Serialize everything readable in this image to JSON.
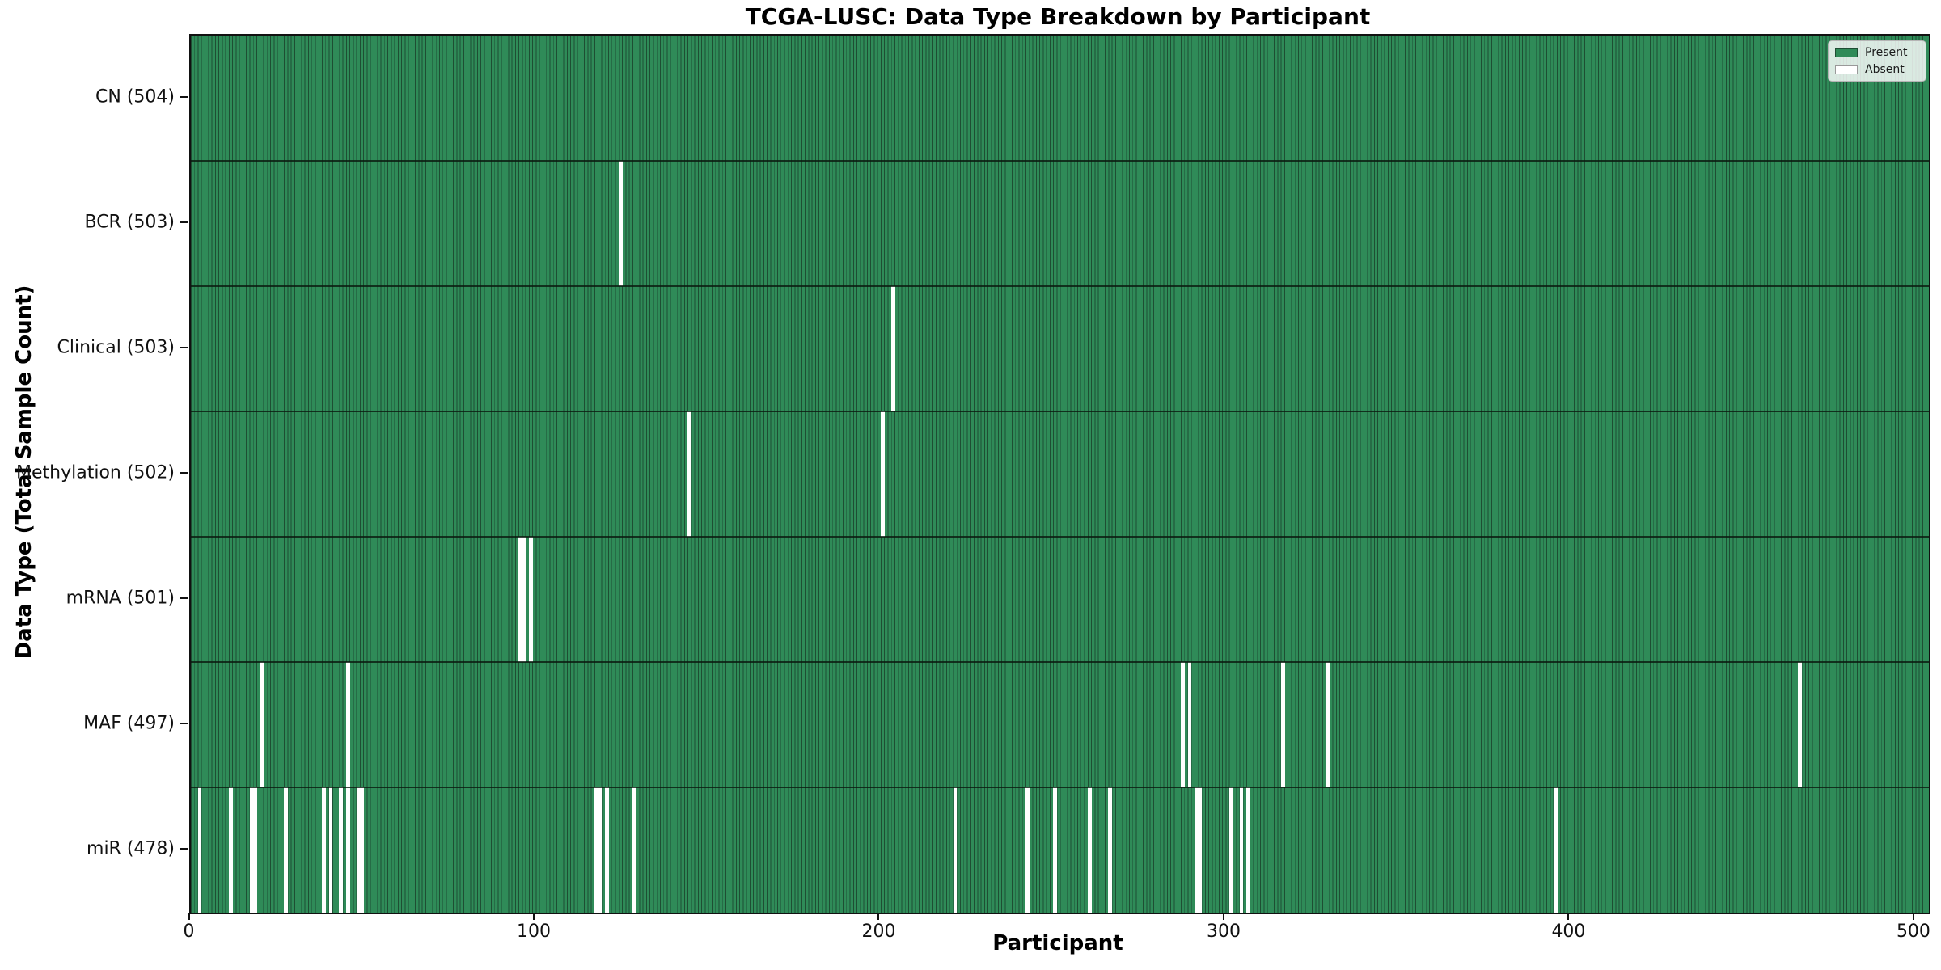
{
  "chart_data": {
    "type": "heatmap",
    "title": "TCGA-LUSC: Data Type Breakdown by Participant",
    "xlabel": "Participant",
    "ylabel": "Data Type (Total Sample Count)",
    "n_participants": 504,
    "xlim": [
      0,
      504
    ],
    "x_ticks": [
      0,
      100,
      200,
      300,
      400,
      500
    ],
    "grid": false,
    "legend": {
      "position": "upper right",
      "entries": [
        {
          "label": "Present",
          "color": "#2f8b58",
          "edge": "#1e4e33"
        },
        {
          "label": "Absent",
          "color": "#ffffff",
          "edge": "#999999"
        }
      ]
    },
    "colors": {
      "present_fill": "#2f8b58",
      "present_edge": "#1e4e33",
      "absent": "#ffffff"
    },
    "rows": [
      {
        "label": "CN (504)",
        "data_type": "CN",
        "total_samples": 504,
        "absent_participants": []
      },
      {
        "label": "BCR (503)",
        "data_type": "BCR",
        "total_samples": 503,
        "absent_participants": [
          124
        ]
      },
      {
        "label": "Clinical (503)",
        "data_type": "Clinical",
        "total_samples": 503,
        "absent_participants": [
          203
        ]
      },
      {
        "label": "Methylation (502)",
        "data_type": "Methylation",
        "total_samples": 502,
        "absent_participants": [
          144,
          200
        ]
      },
      {
        "label": "mRNA (501)",
        "data_type": "mRNA",
        "total_samples": 501,
        "absent_participants": [
          95,
          96,
          98
        ]
      },
      {
        "label": "MAF (497)",
        "data_type": "MAF",
        "total_samples": 497,
        "absent_participants": [
          20,
          45,
          287,
          289,
          316,
          329,
          466
        ]
      },
      {
        "label": "miR (478)",
        "data_type": "miR",
        "total_samples": 478,
        "absent_participants": [
          2,
          11,
          17,
          18,
          27,
          38,
          40,
          43,
          45,
          48,
          49,
          117,
          118,
          120,
          128,
          221,
          242,
          250,
          260,
          266,
          291,
          292,
          301,
          304,
          306,
          395
        ]
      }
    ]
  }
}
